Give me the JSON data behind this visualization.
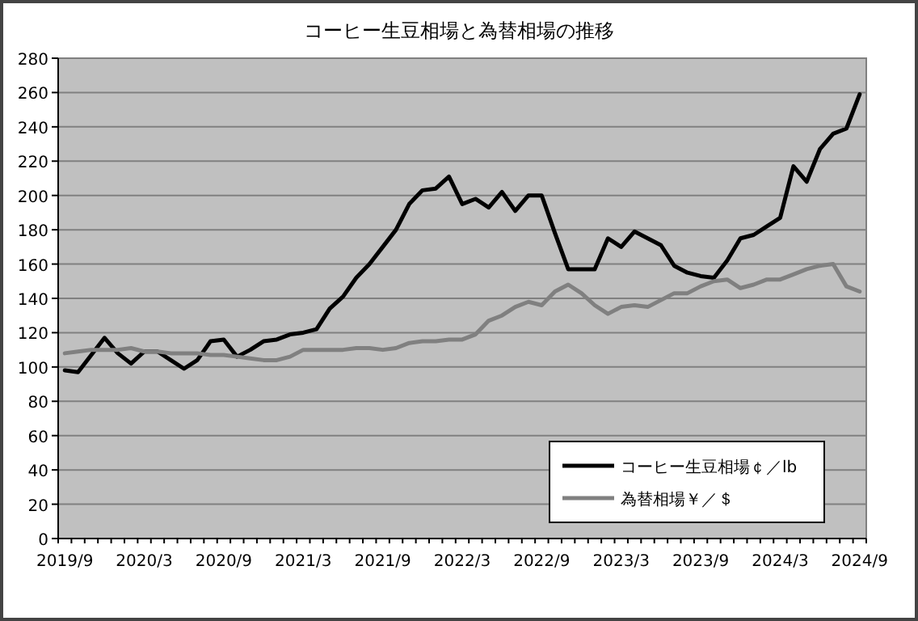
{
  "chart_data": {
    "type": "line",
    "title": "コーヒー生豆相場と為替相場の推移",
    "categories": [
      "2019/9",
      null,
      null,
      null,
      null,
      null,
      "2020/3",
      null,
      null,
      null,
      null,
      null,
      "2020/9",
      null,
      null,
      null,
      null,
      null,
      "2021/3",
      null,
      null,
      null,
      null,
      null,
      "2021/9",
      null,
      null,
      null,
      null,
      null,
      "2022/3",
      null,
      null,
      null,
      null,
      null,
      "2022/9",
      null,
      null,
      null,
      null,
      null,
      "2023/3",
      null,
      null,
      null,
      null,
      null,
      "2023/9",
      null,
      null,
      null,
      null,
      null,
      "2024/3",
      null,
      null,
      null,
      null,
      null,
      "2024/9"
    ],
    "series": [
      {
        "name": "コーヒー生豆相場￠／lb",
        "color": "#000000",
        "values": [
          98,
          97,
          107,
          117,
          108,
          102,
          109,
          109,
          104,
          99,
          104,
          115,
          116,
          106,
          110,
          115,
          116,
          119,
          120,
          122,
          134,
          141,
          152,
          160,
          170,
          180,
          195,
          203,
          204,
          211,
          195,
          198,
          193,
          202,
          191,
          200,
          200,
          178,
          157,
          157,
          157,
          175,
          170,
          179,
          175,
          171,
          159,
          155,
          153,
          152,
          162,
          175,
          177,
          182,
          187,
          217,
          208,
          227,
          236,
          239,
          259
        ]
      },
      {
        "name": "為替相場￥／＄",
        "color": "#808080",
        "values": [
          108,
          109,
          110,
          110,
          110,
          111,
          109,
          109,
          108,
          108,
          108,
          107,
          107,
          106,
          105,
          104,
          104,
          106,
          110,
          110,
          110,
          110,
          111,
          111,
          110,
          111,
          114,
          115,
          115,
          116,
          116,
          119,
          127,
          130,
          135,
          138,
          136,
          144,
          148,
          143,
          136,
          131,
          135,
          136,
          135,
          139,
          143,
          143,
          147,
          150,
          151,
          146,
          148,
          151,
          151,
          154,
          157,
          159,
          160,
          147,
          144
        ]
      }
    ],
    "ylim": [
      0,
      280
    ],
    "yticks": [
      0,
      20,
      40,
      60,
      80,
      100,
      120,
      140,
      160,
      180,
      200,
      220,
      240,
      260,
      280
    ],
    "grid": "y",
    "legend": "bottom right"
  }
}
